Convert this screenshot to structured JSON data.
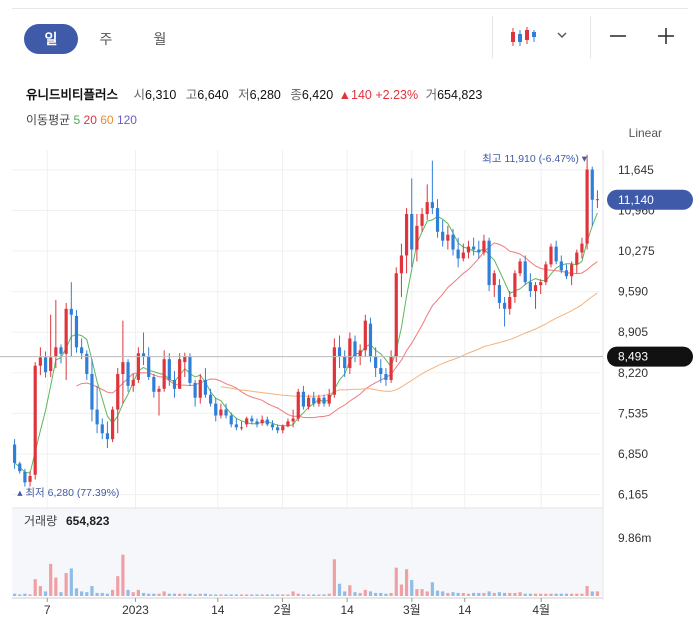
{
  "tabs": [
    {
      "label": "일",
      "active": true
    },
    {
      "label": "주",
      "active": false
    },
    {
      "label": "월",
      "active": false
    }
  ],
  "toolbar": {
    "chart_type_icon": "candlestick-icon",
    "dropdown_icon": "chevron-down-icon",
    "zoom_out_icon": "minus-icon",
    "zoom_in_icon": "plus-icon"
  },
  "stock": {
    "name": "유니드비티플러스",
    "open_label": "시",
    "open": "6,310",
    "high_label": "고",
    "high": "6,640",
    "low_label": "저",
    "low": "6,280",
    "close_label": "종",
    "close": "6,420",
    "change": "▲140",
    "change_pct": "+2.23%",
    "volume_label": "거",
    "volume": "654,823"
  },
  "moving_average": {
    "label": "이동평균",
    "periods": [
      {
        "value": "5",
        "color": "#4caf50"
      },
      {
        "value": "20",
        "color": "#e0343c"
      },
      {
        "value": "60",
        "color": "#f08a30"
      },
      {
        "value": "120",
        "color": "#6a5acd"
      }
    ]
  },
  "scale_label": "Linear",
  "colors": {
    "up": "#e0343c",
    "down": "#2f7fd8",
    "accent": "#3f5aa8",
    "ma5": "#5cb85c",
    "ma20": "#f07a7a",
    "ma60": "#f5b27a"
  },
  "chart_data": {
    "type": "candlestick",
    "price_axis": {
      "ticks": [
        "11,645",
        "10,960",
        "10,275",
        "9,590",
        "8,905",
        "8,220",
        "7,535",
        "6,850",
        "6,165"
      ],
      "ylim": [
        6040,
        11980
      ]
    },
    "current_price_tag": "11,140",
    "reference_price_tag": "8,493",
    "max_annotation": {
      "label": "최고",
      "value": "11,910 (-6.47%)"
    },
    "min_annotation": {
      "label": "최저",
      "value": "6,280 (77.39%)"
    },
    "x_axis": {
      "ticks": [
        "7",
        "2023",
        "14",
        "2월",
        "14",
        "3월",
        "14",
        "4월"
      ]
    },
    "volume": {
      "label": "거래량",
      "value": "654,823",
      "axis_tick": "9.86m",
      "ylim": [
        0,
        11.5
      ]
    },
    "candles": [
      {
        "o": 7010,
        "h": 7100,
        "l": 6600,
        "c": 6700
      },
      {
        "o": 6690,
        "h": 6720,
        "l": 6520,
        "c": 6560
      },
      {
        "o": 6550,
        "h": 6600,
        "l": 6300,
        "c": 6370
      },
      {
        "o": 6380,
        "h": 6560,
        "l": 6300,
        "c": 6480
      },
      {
        "o": 6500,
        "h": 8400,
        "l": 6420,
        "c": 8340
      },
      {
        "o": 8340,
        "h": 8650,
        "l": 8180,
        "c": 8480
      },
      {
        "o": 8480,
        "h": 8580,
        "l": 8140,
        "c": 8230
      },
      {
        "o": 8250,
        "h": 9200,
        "l": 8150,
        "c": 8480
      },
      {
        "o": 8490,
        "h": 9450,
        "l": 8300,
        "c": 8650
      },
      {
        "o": 8650,
        "h": 8700,
        "l": 8380,
        "c": 8540
      },
      {
        "o": 8540,
        "h": 9400,
        "l": 8100,
        "c": 9300
      },
      {
        "o": 9300,
        "h": 9750,
        "l": 8500,
        "c": 9200
      },
      {
        "o": 9180,
        "h": 9280,
        "l": 8560,
        "c": 8650
      },
      {
        "o": 8650,
        "h": 8800,
        "l": 8450,
        "c": 8550
      },
      {
        "o": 8540,
        "h": 8600,
        "l": 8100,
        "c": 8200
      },
      {
        "o": 8200,
        "h": 8450,
        "l": 7400,
        "c": 7600
      },
      {
        "o": 7600,
        "h": 8000,
        "l": 7200,
        "c": 7350
      },
      {
        "o": 7350,
        "h": 7450,
        "l": 7100,
        "c": 7200
      },
      {
        "o": 7200,
        "h": 7400,
        "l": 6950,
        "c": 7100
      },
      {
        "o": 7100,
        "h": 7650,
        "l": 7050,
        "c": 7600
      },
      {
        "o": 7600,
        "h": 8300,
        "l": 7200,
        "c": 8200
      },
      {
        "o": 8200,
        "h": 9100,
        "l": 7700,
        "c": 8400
      },
      {
        "o": 8400,
        "h": 8450,
        "l": 7900,
        "c": 8000
      },
      {
        "o": 8000,
        "h": 8200,
        "l": 7900,
        "c": 8100
      },
      {
        "o": 8100,
        "h": 8650,
        "l": 8050,
        "c": 8550
      },
      {
        "o": 8550,
        "h": 8900,
        "l": 8350,
        "c": 8500
      },
      {
        "o": 8500,
        "h": 8650,
        "l": 8100,
        "c": 8150
      },
      {
        "o": 8150,
        "h": 8200,
        "l": 7800,
        "c": 7900
      },
      {
        "o": 7900,
        "h": 8000,
        "l": 7500,
        "c": 7950
      },
      {
        "o": 7950,
        "h": 8600,
        "l": 7900,
        "c": 8450
      },
      {
        "o": 8450,
        "h": 8550,
        "l": 8000,
        "c": 8100
      },
      {
        "o": 8100,
        "h": 8250,
        "l": 7800,
        "c": 7950
      },
      {
        "o": 7950,
        "h": 8550,
        "l": 7950,
        "c": 8450
      },
      {
        "o": 8400,
        "h": 8560,
        "l": 8150,
        "c": 8500
      },
      {
        "o": 8500,
        "h": 8550,
        "l": 8000,
        "c": 8050
      },
      {
        "o": 8050,
        "h": 8100,
        "l": 7650,
        "c": 7800
      },
      {
        "o": 7800,
        "h": 8200,
        "l": 7700,
        "c": 8100
      },
      {
        "o": 8100,
        "h": 8300,
        "l": 7800,
        "c": 7850
      },
      {
        "o": 7850,
        "h": 7950,
        "l": 7650,
        "c": 7700
      },
      {
        "o": 7700,
        "h": 7800,
        "l": 7400,
        "c": 7500
      },
      {
        "o": 7500,
        "h": 7700,
        "l": 7450,
        "c": 7600
      },
      {
        "o": 7600,
        "h": 7700,
        "l": 7450,
        "c": 7500
      },
      {
        "o": 7500,
        "h": 7550,
        "l": 7300,
        "c": 7350
      },
      {
        "o": 7350,
        "h": 7450,
        "l": 7250,
        "c": 7300
      },
      {
        "o": 7300,
        "h": 7400,
        "l": 7250,
        "c": 7300
      },
      {
        "o": 7350,
        "h": 7480,
        "l": 7300,
        "c": 7450
      },
      {
        "o": 7450,
        "h": 7500,
        "l": 7350,
        "c": 7400
      },
      {
        "o": 7400,
        "h": 7450,
        "l": 7300,
        "c": 7350
      },
      {
        "o": 7370,
        "h": 7500,
        "l": 7330,
        "c": 7430
      },
      {
        "o": 7430,
        "h": 7480,
        "l": 7320,
        "c": 7350
      },
      {
        "o": 7350,
        "h": 7420,
        "l": 7250,
        "c": 7300
      },
      {
        "o": 7300,
        "h": 7350,
        "l": 7200,
        "c": 7250
      },
      {
        "o": 7250,
        "h": 7350,
        "l": 7200,
        "c": 7320
      },
      {
        "o": 7320,
        "h": 7450,
        "l": 7300,
        "c": 7400
      },
      {
        "o": 7400,
        "h": 7600,
        "l": 7300,
        "c": 7450
      },
      {
        "o": 7450,
        "h": 7950,
        "l": 7400,
        "c": 7900
      },
      {
        "o": 7900,
        "h": 8000,
        "l": 7600,
        "c": 7650
      },
      {
        "o": 7650,
        "h": 7850,
        "l": 7600,
        "c": 7800
      },
      {
        "o": 7800,
        "h": 7900,
        "l": 7650,
        "c": 7700
      },
      {
        "o": 7700,
        "h": 7850,
        "l": 7650,
        "c": 7800
      },
      {
        "o": 7800,
        "h": 7850,
        "l": 7650,
        "c": 7700
      },
      {
        "o": 7700,
        "h": 7950,
        "l": 7650,
        "c": 7850
      },
      {
        "o": 7850,
        "h": 8800,
        "l": 7800,
        "c": 8650
      },
      {
        "o": 8650,
        "h": 8850,
        "l": 8300,
        "c": 8500
      },
      {
        "o": 8500,
        "h": 8600,
        "l": 8150,
        "c": 8300
      },
      {
        "o": 8300,
        "h": 8900,
        "l": 8200,
        "c": 8800
      },
      {
        "o": 8750,
        "h": 8850,
        "l": 8400,
        "c": 8500
      },
      {
        "o": 8500,
        "h": 8700,
        "l": 8350,
        "c": 8600
      },
      {
        "o": 8600,
        "h": 9200,
        "l": 8500,
        "c": 9100
      },
      {
        "o": 9050,
        "h": 9150,
        "l": 8400,
        "c": 8500
      },
      {
        "o": 8500,
        "h": 8650,
        "l": 8150,
        "c": 8300
      },
      {
        "o": 8300,
        "h": 8450,
        "l": 8050,
        "c": 8200
      },
      {
        "o": 8200,
        "h": 8300,
        "l": 8000,
        "c": 8100
      },
      {
        "o": 8100,
        "h": 8600,
        "l": 8050,
        "c": 8500
      },
      {
        "o": 8500,
        "h": 10000,
        "l": 8400,
        "c": 9900
      },
      {
        "o": 9900,
        "h": 10400,
        "l": 9500,
        "c": 10200
      },
      {
        "o": 10200,
        "h": 11000,
        "l": 9900,
        "c": 10900
      },
      {
        "o": 10900,
        "h": 11500,
        "l": 10000,
        "c": 10300
      },
      {
        "o": 10300,
        "h": 10900,
        "l": 10100,
        "c": 10700
      },
      {
        "o": 10700,
        "h": 11000,
        "l": 10600,
        "c": 10900
      },
      {
        "o": 10900,
        "h": 11400,
        "l": 10800,
        "c": 11100
      },
      {
        "o": 11100,
        "h": 11800,
        "l": 10900,
        "c": 11000
      },
      {
        "o": 11000,
        "h": 11150,
        "l": 10500,
        "c": 10600
      },
      {
        "o": 10600,
        "h": 10800,
        "l": 10350,
        "c": 10450
      },
      {
        "o": 10450,
        "h": 10700,
        "l": 10300,
        "c": 10550
      },
      {
        "o": 10550,
        "h": 10650,
        "l": 10200,
        "c": 10300
      },
      {
        "o": 10300,
        "h": 10500,
        "l": 10000,
        "c": 10150
      },
      {
        "o": 10150,
        "h": 10400,
        "l": 10100,
        "c": 10250
      },
      {
        "o": 10250,
        "h": 10450,
        "l": 10150,
        "c": 10350
      },
      {
        "o": 10350,
        "h": 10500,
        "l": 10200,
        "c": 10300
      },
      {
        "o": 10300,
        "h": 10450,
        "l": 10150,
        "c": 10250
      },
      {
        "o": 10250,
        "h": 10550,
        "l": 10200,
        "c": 10450
      },
      {
        "o": 10450,
        "h": 10500,
        "l": 9600,
        "c": 9700
      },
      {
        "o": 9700,
        "h": 9950,
        "l": 9500,
        "c": 9900
      },
      {
        "o": 9700,
        "h": 9800,
        "l": 9300,
        "c": 9400
      },
      {
        "o": 9400,
        "h": 9500,
        "l": 9000,
        "c": 9300
      },
      {
        "o": 9300,
        "h": 9600,
        "l": 9200,
        "c": 9500
      },
      {
        "o": 9500,
        "h": 9950,
        "l": 9400,
        "c": 9900
      },
      {
        "o": 9900,
        "h": 10150,
        "l": 9850,
        "c": 10100
      },
      {
        "o": 10100,
        "h": 10200,
        "l": 9700,
        "c": 9750
      },
      {
        "o": 9750,
        "h": 9900,
        "l": 9500,
        "c": 9600
      },
      {
        "o": 9600,
        "h": 9750,
        "l": 9300,
        "c": 9700
      },
      {
        "o": 9700,
        "h": 9800,
        "l": 9550,
        "c": 9750
      },
      {
        "o": 9750,
        "h": 10100,
        "l": 9700,
        "c": 10050
      },
      {
        "o": 10050,
        "h": 10400,
        "l": 10000,
        "c": 10350
      },
      {
        "o": 10350,
        "h": 10450,
        "l": 10050,
        "c": 10100
      },
      {
        "o": 10100,
        "h": 10200,
        "l": 9900,
        "c": 9950
      },
      {
        "o": 9950,
        "h": 10050,
        "l": 9800,
        "c": 9850
      },
      {
        "o": 9850,
        "h": 10100,
        "l": 9700,
        "c": 10050
      },
      {
        "o": 10050,
        "h": 10300,
        "l": 9900,
        "c": 10250
      },
      {
        "o": 10250,
        "h": 10500,
        "l": 10150,
        "c": 10400
      },
      {
        "o": 10400,
        "h": 11900,
        "l": 10300,
        "c": 11650
      },
      {
        "o": 11650,
        "h": 11700,
        "l": 10700,
        "c": 11140
      },
      {
        "o": 11140,
        "h": 11300,
        "l": 11000,
        "c": 11150
      }
    ],
    "volumes": [
      0.3,
      0.2,
      0.3,
      0.2,
      2.2,
      1.3,
      0.6,
      4.2,
      2.4,
      0.5,
      3.0,
      3.6,
      1.0,
      0.6,
      0.5,
      1.3,
      0.4,
      0.4,
      0.3,
      0.8,
      2.6,
      5.4,
      0.8,
      0.5,
      0.8,
      0.4,
      0.3,
      0.3,
      0.3,
      0.6,
      0.3,
      0.3,
      0.3,
      0.3,
      0.3,
      0.2,
      0.3,
      0.3,
      0.2,
      0.2,
      0.2,
      0.2,
      0.2,
      0.2,
      0.2,
      0.2,
      0.2,
      0.2,
      0.2,
      0.2,
      0.2,
      0.2,
      0.2,
      0.2,
      0.6,
      0.3,
      0.2,
      0.2,
      0.2,
      0.2,
      0.2,
      0.3,
      4.8,
      1.6,
      0.6,
      1.4,
      0.5,
      0.4,
      0.8,
      0.6,
      0.4,
      0.4,
      0.3,
      0.4,
      3.7,
      1.5,
      3.5,
      2.1,
      0.9,
      0.9,
      0.6,
      1.8,
      0.7,
      0.6,
      0.4,
      0.5,
      0.4,
      0.4,
      0.3,
      0.4,
      0.4,
      0.4,
      0.6,
      0.4,
      0.5,
      0.4,
      0.4,
      0.4,
      0.5,
      0.3,
      0.3,
      0.3,
      0.3,
      0.3,
      0.3,
      0.3,
      0.3,
      0.3,
      0.3,
      0.3,
      0.3,
      1.3,
      0.6,
      0.6
    ]
  }
}
